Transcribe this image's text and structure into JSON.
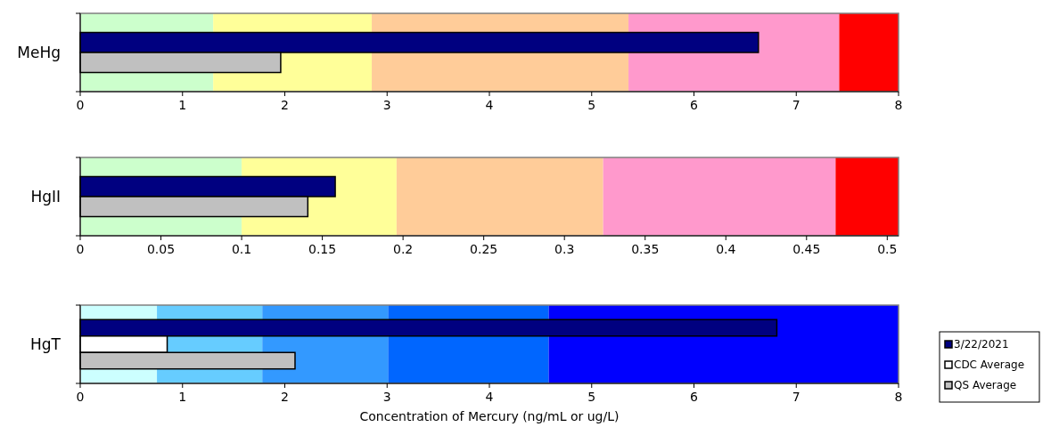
{
  "chart_data": [
    {
      "type": "bar",
      "orientation": "horizontal",
      "categories": [
        "MeHg"
      ],
      "xlim": [
        0,
        8
      ],
      "xticks": [
        0,
        1,
        2,
        3,
        4,
        5,
        6,
        7,
        8
      ],
      "series": [
        {
          "color": "#000080",
          "values": [
            6.63
          ]
        },
        {
          "color": "#c0c0c0",
          "values": [
            1.96
          ]
        }
      ],
      "bands": [
        {
          "axis": "x",
          "from": 0,
          "to": 1.3,
          "color": "#ccffcc"
        },
        {
          "axis": "x",
          "from": 1.3,
          "to": 2.85,
          "color": "#ffff99"
        },
        {
          "axis": "x",
          "from": 2.85,
          "to": 5.36,
          "color": "#ffcc99"
        },
        {
          "axis": "x",
          "from": 5.36,
          "to": 7.42,
          "color": "#ff99cc"
        },
        {
          "axis": "x",
          "from": 7.42,
          "to": 8,
          "color": "#ff0000"
        }
      ]
    },
    {
      "type": "bar",
      "orientation": "horizontal",
      "categories": [
        "HgII"
      ],
      "xlim": [
        0,
        0.507
      ],
      "xticks": [
        0,
        0.05,
        0.1,
        0.15,
        0.2,
        0.25,
        0.3,
        0.35,
        0.4,
        0.45,
        0.5
      ],
      "series": [
        {
          "color": "#000080",
          "values": [
            0.158
          ]
        },
        {
          "color": "#c0c0c0",
          "values": [
            0.141
          ]
        }
      ],
      "bands": [
        {
          "axis": "x",
          "from": 0,
          "to": 0.1,
          "color": "#ccffcc"
        },
        {
          "axis": "x",
          "from": 0.1,
          "to": 0.196,
          "color": "#ffff99"
        },
        {
          "axis": "x",
          "from": 0.196,
          "to": 0.324,
          "color": "#ffcc99"
        },
        {
          "axis": "x",
          "from": 0.324,
          "to": 0.468,
          "color": "#ff99cc"
        },
        {
          "axis": "x",
          "from": 0.468,
          "to": 0.507,
          "color": "#ff0000"
        }
      ]
    },
    {
      "type": "bar",
      "orientation": "horizontal",
      "categories": [
        "HgT"
      ],
      "xlim": [
        0,
        8
      ],
      "xticks": [
        0,
        1,
        2,
        3,
        4,
        5,
        6,
        7,
        8
      ],
      "xlabel": "Concentration of Mercury (ng/mL or ug/L)",
      "legend": "right",
      "series": [
        {
          "name": "3/22/2021",
          "color": "#000080",
          "values": [
            6.81
          ]
        },
        {
          "name": "CDC Average",
          "color": "#ffffff",
          "values": [
            0.85
          ]
        },
        {
          "name": "QS Average",
          "color": "#c0c0c0",
          "values": [
            2.1
          ]
        }
      ],
      "bands": [
        {
          "axis": "x",
          "from": 0,
          "to": 0.75,
          "color": "#ccffff"
        },
        {
          "axis": "x",
          "from": 0.75,
          "to": 1.78,
          "color": "#66ccff"
        },
        {
          "axis": "x",
          "from": 1.78,
          "to": 3.01,
          "color": "#3399ff"
        },
        {
          "axis": "x",
          "from": 3.01,
          "to": 4.58,
          "color": "#0066ff"
        },
        {
          "axis": "x",
          "from": 4.58,
          "to": 8,
          "color": "#0000ff"
        }
      ]
    }
  ]
}
